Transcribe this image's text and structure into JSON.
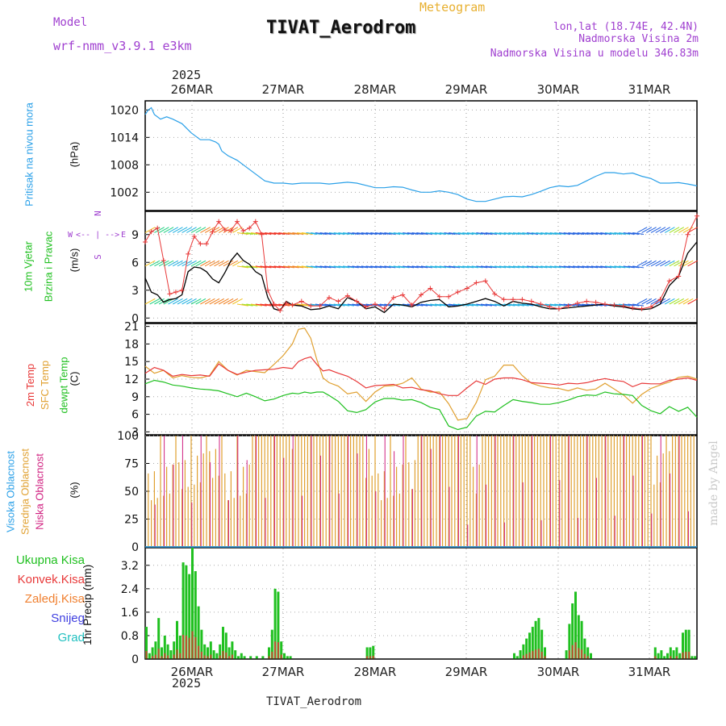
{
  "header": {
    "model_label": "Model",
    "model_name": "wrf-nmm_v3.9.1 e3km",
    "meteogram_label": "Meteogram",
    "station": "TIVAT_Aerodrom",
    "lonlat": "lon,lat (18.74E, 42.4N)",
    "elevation": "Nadmorska Visina 2m",
    "model_elevation": "Nadmorska Visina u modelu 346.83m",
    "footer_station": "TIVAT_Aerodrom",
    "watermark": "made by Angel"
  },
  "time_axis": {
    "year": "2025",
    "days": [
      "26MAR",
      "27MAR",
      "28MAR",
      "29MAR",
      "30MAR",
      "31MAR"
    ]
  },
  "panels": {
    "pressure": {
      "label": "Pritisak na nivou mora",
      "unit": "(hPa)",
      "ticks": [
        "1020",
        "1014",
        "1008",
        "1002"
      ],
      "color": "#2aa0e8"
    },
    "wind": {
      "label1": "10m Vjetar",
      "label2": "Brzina i Pravac",
      "unit": "(m/s)",
      "ticks": [
        "0",
        "3",
        "6",
        "9"
      ],
      "compass_n": "N",
      "compass_s": "S",
      "compass_w": "W",
      "compass_e": "E",
      "arrow": "<-- | -->"
    },
    "temperature": {
      "label1": "2m Temp",
      "label2": "SFC Temp",
      "label3": "dewpt Temp",
      "unit": "(C)",
      "ticks": [
        "3",
        "6",
        "9",
        "12",
        "15",
        "18",
        "21"
      ],
      "colors": {
        "t2m": "#e83838",
        "sfc": "#e0a030",
        "dew": "#20c020"
      }
    },
    "cloud": {
      "label1": "Visoka Oblacnost",
      "label2": "Srednja Oblacnost",
      "label3": "Niska Oblacnost",
      "unit": "(%)",
      "ticks": [
        "0",
        "25",
        "50",
        "75",
        "100"
      ]
    },
    "precip": {
      "label": "1hr Precip (mm)",
      "ticks": [
        "0",
        "0.8",
        "1.6",
        "2.4",
        "3.2"
      ],
      "legend": [
        "Ukupna Kisa",
        "Konvek.Kisa",
        "Zaledj.Kisa",
        "Snijeg",
        "Grad"
      ],
      "legend_colors": [
        "#20c020",
        "#e83838",
        "#f08030",
        "#4040e0",
        "#20c0c0"
      ]
    }
  },
  "chart_data": [
    {
      "type": "line",
      "title": "Pritisak na nivou mora (hPa)",
      "ylim": [
        998,
        1022
      ],
      "x_hours": [
        0,
        2,
        4,
        6,
        10,
        14,
        18,
        24,
        30,
        36,
        42,
        46,
        48,
        50,
        54,
        60,
        66,
        72,
        78,
        84,
        90,
        96,
        102,
        108,
        114,
        120,
        126,
        132,
        138,
        144,
        150,
        156,
        162,
        168,
        174,
        180,
        186,
        192,
        198,
        204,
        210,
        216,
        222,
        228,
        234,
        240,
        246,
        252,
        258,
        264,
        270,
        276,
        282,
        288,
        294,
        300,
        306,
        312,
        318,
        324,
        330,
        336,
        342,
        348,
        354,
        360
      ],
      "values": [
        1019,
        1020,
        1020.5,
        1019,
        1018,
        1018.5,
        1018,
        1017,
        1015,
        1013.5,
        1013.5,
        1013,
        1012.5,
        1011,
        1010,
        1009,
        1007.5,
        1006,
        1004.5,
        1004,
        1004,
        1003.8,
        1004,
        1004,
        1004,
        1003.8,
        1004,
        1004.2,
        1004,
        1003.5,
        1003,
        1003,
        1003.2,
        1003.1,
        1002.5,
        1002,
        1002,
        1002.3,
        1002,
        1001.5,
        1000.5,
        1000,
        1000,
        1000.5,
        1001,
        1001.1,
        1001,
        1001.5,
        1002.2,
        1003,
        1003.4,
        1003.2,
        1003.5,
        1004.5,
        1005.5,
        1006.3,
        1006.3,
        1006,
        1006.2,
        1005.5,
        1005,
        1004,
        1004,
        1004.1,
        1003.8,
        1003.4
      ]
    },
    {
      "type": "line",
      "title": "10m Vjetar (m/s)",
      "ylim": [
        -0.5,
        11.5
      ],
      "x_hours": [
        0,
        4,
        8,
        12,
        16,
        20,
        24,
        28,
        32,
        36,
        40,
        44,
        48,
        52,
        56,
        60,
        64,
        68,
        72,
        76,
        80,
        84,
        88,
        92,
        96,
        102,
        108,
        114,
        120,
        126,
        132,
        138,
        144,
        150,
        156,
        162,
        168,
        174,
        180,
        186,
        192,
        198,
        204,
        210,
        216,
        222,
        228,
        234,
        240,
        246,
        252,
        258,
        264,
        270,
        276,
        282,
        288,
        294,
        300,
        306,
        312,
        318,
        324,
        330,
        336,
        342,
        348,
        354,
        360
      ],
      "speed": [
        4.3,
        2.8,
        2.5,
        1.7,
        2.0,
        2.1,
        2.5,
        5.0,
        5.5,
        5.4,
        5.0,
        4.2,
        3.8,
        4.9,
        6.2,
        7.0,
        6.2,
        5.8,
        5.0,
        4.6,
        2.2,
        1.0,
        0.8,
        1.8,
        1.4,
        1.3,
        0.9,
        1.0,
        1.3,
        1.0,
        2.2,
        1.8,
        1.0,
        1.2,
        0.6,
        1.5,
        1.4,
        1.2,
        1.7,
        1.9,
        2.0,
        1.2,
        1.3,
        1.5,
        1.8,
        2.1,
        1.8,
        1.3,
        1.8,
        1.6,
        1.5,
        1.2,
        1.0,
        1.0,
        1.1,
        1.2,
        1.3,
        1.4,
        1.5,
        1.3,
        1.2,
        1.0,
        0.9,
        1.0,
        1.5,
        3.5,
        4.5,
        7.0,
        8.2
      ],
      "gust": [
        8.2,
        9.3,
        9.7,
        6.2,
        2.6,
        2.8,
        3.0,
        6.9,
        8.8,
        8.0,
        8.0,
        9.3,
        10.4,
        9.5,
        9.4,
        10.4,
        9.4,
        9.7,
        10.4,
        9.0,
        3.0,
        1.5,
        0.8,
        1.6,
        1.4,
        1.8,
        1.3,
        1.3,
        2.2,
        1.8,
        2.4,
        1.8,
        1.2,
        1.5,
        1.0,
        2.2,
        2.5,
        1.4,
        2.5,
        3.2,
        2.3,
        2.3,
        2.8,
        3.2,
        3.8,
        4.0,
        2.6,
        2.0,
        2.0,
        2.0,
        1.8,
        1.5,
        1.2,
        1.0,
        1.3,
        1.6,
        1.8,
        1.7,
        1.5,
        1.4,
        1.3,
        1.1,
        1.0,
        1.2,
        2.0,
        4.0,
        4.5,
        9.0,
        11.0
      ]
    },
    {
      "type": "line",
      "title": "Temperatura (C)",
      "ylim": [
        2.5,
        21.5
      ],
      "x_hours": [
        0,
        6,
        12,
        18,
        24,
        30,
        36,
        42,
        48,
        54,
        60,
        66,
        72,
        78,
        84,
        90,
        96,
        100,
        104,
        108,
        112,
        116,
        120,
        126,
        132,
        138,
        144,
        150,
        156,
        162,
        168,
        174,
        180,
        186,
        192,
        198,
        204,
        210,
        216,
        222,
        228,
        234,
        240,
        246,
        252,
        258,
        264,
        270,
        276,
        282,
        288,
        294,
        300,
        306,
        312,
        318,
        324,
        330,
        336,
        342,
        348,
        354,
        360
      ],
      "t2m": [
        13,
        14,
        13.5,
        12.5,
        12.8,
        12.6,
        12.7,
        12.5,
        14.6,
        13.5,
        12.8,
        13.2,
        13.5,
        13.6,
        13.7,
        14,
        13.8,
        15,
        15.5,
        15.8,
        14.5,
        13.4,
        13.6,
        13,
        12.5,
        11.6,
        10.5,
        10.9,
        11.0,
        11.1,
        10.5,
        10.6,
        10.2,
        10,
        9.5,
        9.2,
        9.2,
        10.5,
        11.7,
        11.1,
        12,
        12.2,
        12.2,
        11.9,
        11.4,
        11.3,
        11.2,
        11.0,
        11.3,
        11.2,
        11.4,
        11.8,
        12.1,
        11.8,
        11.6,
        10.7,
        11.3,
        11.2,
        11.2,
        11.8,
        12,
        12.2,
        11.8
      ],
      "sfc": [
        14.2,
        13,
        13.5,
        12.2,
        12.6,
        12.3,
        12.2,
        12.6,
        15,
        13.5,
        12.7,
        13.5,
        13.3,
        13.1,
        14.5,
        16,
        18,
        20.5,
        20.7,
        19,
        15.3,
        12.2,
        11.4,
        10.8,
        9.5,
        9.8,
        8.2,
        9.8,
        10.8,
        10.9,
        11.3,
        12.2,
        10.3,
        9.8,
        9.8,
        7.8,
        5.0,
        5.3,
        8.0,
        11.9,
        12.5,
        14.4,
        14.4,
        12.6,
        11.3,
        10.8,
        10.5,
        10.4,
        10.0,
        10.5,
        10.1,
        10.3,
        11.3,
        10.3,
        9.3,
        7.9,
        9.4,
        10.4,
        11.0,
        11.5,
        12.3,
        12.5,
        12.0
      ],
      "dew": [
        11.2,
        11.8,
        11.5,
        11,
        10.8,
        10.5,
        10.3,
        10.2,
        10.0,
        9.5,
        9.0,
        9.6,
        9.0,
        8.3,
        8.6,
        9.2,
        9.6,
        9.5,
        9.8,
        9.6,
        9.8,
        9.8,
        9.2,
        8.2,
        6.6,
        6.3,
        6.8,
        8.1,
        8.7,
        8.7,
        8.4,
        8.5,
        8.0,
        7.2,
        6.8,
        4.0,
        3.4,
        3.8,
        5.7,
        6.5,
        6.4,
        7.5,
        8.5,
        8.2,
        8.0,
        7.7,
        7.7,
        8.0,
        8.4,
        9.0,
        9.3,
        9.2,
        9.8,
        9.5,
        9.4,
        9.2,
        7.5,
        6.6,
        6.1,
        7.3,
        6.5,
        7.2,
        5.5
      ]
    },
    {
      "type": "bar",
      "title": "Oblacnost (%)",
      "ylim": [
        0,
        100
      ],
      "note": "hourly cloud cover bars; mid-level cover dominant (mostly 100%), high and low cover intermittent",
      "mid_full_spans": [
        [
          72,
          94
        ],
        [
          98,
          142
        ],
        [
          178,
          213
        ],
        [
          222,
          330
        ],
        [
          343,
          360
        ]
      ],
      "mid_gaps_value": 40
    },
    {
      "type": "bar",
      "title": "1hr Precip (mm)",
      "ylim": [
        0,
        3.8
      ],
      "x_hours": [
        0,
        2,
        4,
        6,
        8,
        10,
        12,
        14,
        16,
        18,
        20,
        22,
        24,
        26,
        28,
        30,
        32,
        34,
        36,
        38,
        40,
        42,
        44,
        46,
        48,
        50,
        52,
        54,
        56,
        58,
        60,
        62,
        64,
        66,
        68,
        70,
        72,
        74,
        76,
        78,
        80,
        82,
        84,
        86,
        88,
        90,
        92,
        94,
        96,
        98,
        100,
        102,
        104,
        106,
        108,
        110,
        112,
        114,
        116,
        118,
        120,
        122,
        124,
        126,
        128,
        130,
        132,
        134,
        136,
        138,
        140,
        142,
        144,
        146,
        148,
        150,
        152,
        154,
        156,
        158,
        160,
        162,
        164,
        166,
        168,
        170,
        172,
        174,
        176,
        178,
        180,
        182,
        184,
        186,
        188,
        190,
        192,
        194,
        196,
        198,
        200,
        202,
        204,
        206,
        208,
        210,
        212,
        214,
        216,
        218,
        220,
        222,
        224,
        226,
        228,
        230,
        232,
        234,
        236,
        238,
        240,
        242,
        244,
        246,
        248,
        250,
        252,
        254,
        256,
        258,
        260,
        262,
        264,
        266,
        268,
        270,
        272,
        274,
        276,
        278,
        280,
        282,
        284,
        286,
        288,
        290,
        292,
        294,
        296,
        298,
        300,
        302,
        304,
        306,
        308,
        310,
        312,
        314,
        316,
        318,
        320,
        322,
        324,
        326,
        328,
        330,
        332,
        334,
        336,
        338,
        340,
        342,
        344,
        346,
        348,
        350,
        352,
        354,
        356,
        358
      ],
      "total": [
        1.1,
        0.2,
        0.4,
        0.6,
        1.4,
        0.4,
        0.8,
        0.5,
        0.3,
        0.6,
        1.3,
        0.8,
        3.3,
        3.2,
        2.9,
        3.8,
        3.0,
        1.8,
        1.0,
        0.5,
        0.4,
        0.6,
        0.3,
        0.2,
        0.5,
        1.1,
        0.9,
        0.4,
        0.6,
        0.3,
        0.1,
        0.2,
        0.1,
        0.0,
        0.1,
        0.0,
        0.1,
        0.0,
        0.1,
        0.0,
        0.4,
        1.0,
        2.4,
        2.3,
        0.6,
        0.2,
        0.1,
        0.1,
        0.0,
        0.0,
        0.0,
        0.0,
        0.0,
        0.0,
        0.0,
        0.0,
        0.0,
        0.0,
        0.0,
        0.0,
        0.0,
        0.0,
        0.0,
        0.0,
        0.0,
        0.0,
        0.0,
        0.0,
        0.0,
        0.0,
        0.0,
        0.0,
        0.4,
        0.4,
        0.45,
        0.0,
        0.0,
        0.0,
        0.0,
        0.0,
        0.0,
        0.0,
        0.0,
        0.0,
        0.0,
        0.0,
        0.0,
        0.0,
        0.0,
        0.0,
        0.0,
        0.0,
        0.0,
        0.0,
        0.0,
        0.0,
        0.0,
        0.0,
        0.0,
        0.0,
        0.0,
        0.0,
        0.0,
        0.0,
        0.0,
        0.0,
        0.0,
        0.0,
        0.0,
        0.0,
        0.0,
        0.0,
        0.0,
        0.0,
        0.0,
        0.0,
        0.0,
        0.0,
        0.0,
        0.0,
        0.2,
        0.1,
        0.3,
        0.5,
        0.7,
        0.9,
        1.1,
        1.3,
        1.4,
        1.0,
        0.4,
        0.0,
        0.0,
        0.0,
        0.0,
        0.0,
        0.0,
        0.3,
        1.2,
        1.9,
        2.3,
        1.5,
        1.3,
        0.7,
        0.4,
        0.2,
        0.0,
        0.0,
        0.0,
        0.0,
        0.0,
        0.0,
        0.0,
        0.0,
        0.0,
        0.0,
        0.0,
        0.0,
        0.0,
        0.0,
        0.0,
        0.0,
        0.0,
        0.0,
        0.0,
        0.0,
        0.4,
        0.2,
        0.3,
        0.1,
        0.2,
        0.4,
        0.3,
        0.4,
        0.2,
        0.9,
        1.0,
        1.0,
        0.1,
        0.1,
        0.3,
        0.0
      ]
    }
  ]
}
